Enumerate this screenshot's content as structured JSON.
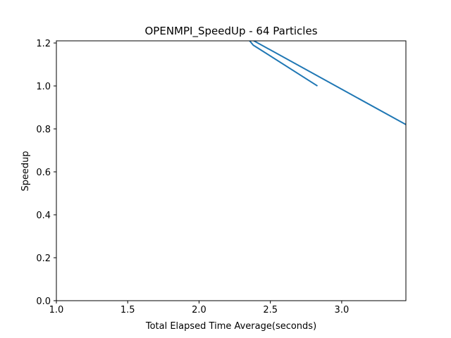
{
  "chart_data": {
    "type": "line",
    "title": "OPENMPI_SpeedUp - 64 Particles",
    "xlabel": "Total Elapsed Time Average(seconds)",
    "ylabel": "Speedup",
    "xlim": [
      1.0,
      3.45
    ],
    "ylim": [
      0.0,
      1.21
    ],
    "xticks": [
      "1.0",
      "1.5",
      "2.0",
      "2.5",
      "3.0"
    ],
    "yticks": [
      "0.0",
      "0.2",
      "0.4",
      "0.6",
      "0.8",
      "1.0",
      "1.2"
    ],
    "grid": false,
    "series": [
      {
        "color": "#1f77b4",
        "x": [
          2.83,
          2.38,
          2.33,
          3.45
        ],
        "y": [
          1.0,
          1.19,
          1.23,
          0.82
        ]
      }
    ]
  }
}
